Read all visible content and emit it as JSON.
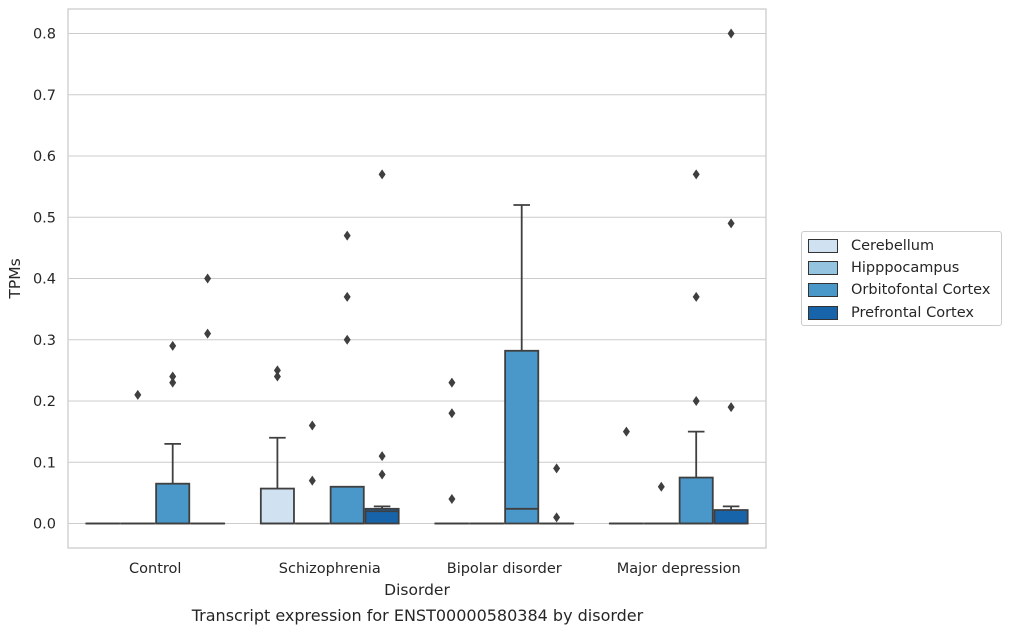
{
  "chart_data": {
    "type": "box",
    "caption": "Transcript expression for ENST00000580384 by disorder",
    "xlabel": "Disorder",
    "ylabel": "TPMs",
    "ylim": [
      -0.04,
      0.84
    ],
    "yticks": [
      0.0,
      0.1,
      0.2,
      0.3,
      0.4,
      0.5,
      0.6,
      0.7,
      0.8
    ],
    "ytick_labels": [
      "0.0",
      "0.1",
      "0.2",
      "0.3",
      "0.4",
      "0.5",
      "0.6",
      "0.7",
      "0.8"
    ],
    "grid": "horizontal",
    "legend_position": "right",
    "categories": [
      "Control",
      "Schizophrenia",
      "Bipolar disorder",
      "Major depression"
    ],
    "series": [
      {
        "name": "Cerebellum",
        "color": "#d0e1f2",
        "boxes": [
          {
            "q1": 0,
            "median": 0,
            "q3": 0,
            "whisker_low": 0,
            "whisker_high": 0,
            "outliers": []
          },
          {
            "q1": 0,
            "median": 0,
            "q3": 0.057,
            "whisker_low": 0,
            "whisker_high": 0.14,
            "outliers": [
              0.24,
              0.25
            ]
          },
          {
            "q1": 0,
            "median": 0,
            "q3": 0,
            "whisker_low": 0,
            "whisker_high": 0,
            "outliers": [
              0.04,
              0.18,
              0.23
            ]
          },
          {
            "q1": 0,
            "median": 0,
            "q3": 0,
            "whisker_low": 0,
            "whisker_high": 0,
            "outliers": [
              0.15
            ]
          }
        ]
      },
      {
        "name": "Hipppocampus",
        "color": "#94c4df",
        "boxes": [
          {
            "q1": 0,
            "median": 0,
            "q3": 0,
            "whisker_low": 0,
            "whisker_high": 0,
            "outliers": [
              0.21
            ]
          },
          {
            "q1": 0,
            "median": 0,
            "q3": 0,
            "whisker_low": 0,
            "whisker_high": 0,
            "outliers": [
              0.07,
              0.16
            ]
          },
          {
            "q1": 0,
            "median": 0,
            "q3": 0,
            "whisker_low": 0,
            "whisker_high": 0,
            "outliers": []
          },
          {
            "q1": 0,
            "median": 0,
            "q3": 0,
            "whisker_low": 0,
            "whisker_high": 0,
            "outliers": [
              0.06
            ]
          }
        ]
      },
      {
        "name": "Orbitofontal Cortex",
        "color": "#4a98c9",
        "boxes": [
          {
            "q1": 0,
            "median": 0,
            "q3": 0.065,
            "whisker_low": 0,
            "whisker_high": 0.13,
            "outliers": [
              0.23,
              0.24,
              0.29
            ]
          },
          {
            "q1": 0,
            "median": 0,
            "q3": 0.06,
            "whisker_low": 0,
            "whisker_high": 0.06,
            "outliers": [
              0.3,
              0.37,
              0.47
            ]
          },
          {
            "q1": 0,
            "median": 0.024,
            "q3": 0.282,
            "whisker_low": 0,
            "whisker_high": 0.52,
            "outliers": []
          },
          {
            "q1": 0,
            "median": 0,
            "q3": 0.075,
            "whisker_low": 0,
            "whisker_high": 0.15,
            "outliers": [
              0.2,
              0.37,
              0.57
            ]
          }
        ]
      },
      {
        "name": "Prefrontal Cortex",
        "color": "#1764ab",
        "boxes": [
          {
            "q1": 0,
            "median": 0,
            "q3": 0,
            "whisker_low": 0,
            "whisker_high": 0,
            "outliers": [
              0.31,
              0.4
            ]
          },
          {
            "q1": 0,
            "median": 0.02,
            "q3": 0.024,
            "whisker_low": 0,
            "whisker_high": 0.028,
            "outliers": [
              0.08,
              0.11,
              0.57
            ]
          },
          {
            "q1": 0,
            "median": 0,
            "q3": 0,
            "whisker_low": 0,
            "whisker_high": 0,
            "outliers": [
              0.01,
              0.09
            ]
          },
          {
            "q1": 0,
            "median": 0,
            "q3": 0.022,
            "whisker_low": 0,
            "whisker_high": 0.028,
            "outliers": [
              0.19,
              0.49,
              0.8
            ]
          }
        ]
      }
    ]
  }
}
